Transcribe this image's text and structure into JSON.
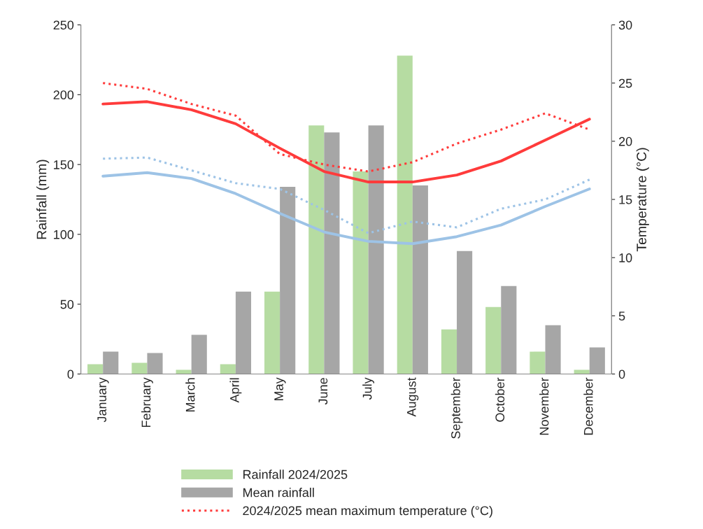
{
  "chart_data": {
    "type": "bar",
    "ylabel": "Rainfall (mm)",
    "y2label": "Temperature (°C)",
    "categories": [
      "January",
      "February",
      "March",
      "April",
      "May",
      "June",
      "July",
      "August",
      "September",
      "October",
      "November",
      "December"
    ],
    "ylim": [
      0,
      250
    ],
    "yticks": [
      0,
      50,
      100,
      150,
      200,
      250
    ],
    "y2lim": [
      0,
      30
    ],
    "y2ticks": [
      0,
      5,
      10,
      15,
      20,
      25,
      30
    ],
    "grid": false,
    "legend": "bottom",
    "series": [
      {
        "name": "Rainfall 2024/2025",
        "color": "#b6dca2",
        "values": [
          7,
          8,
          3,
          7,
          59,
          178,
          145,
          228,
          32,
          48,
          16,
          3
        ]
      },
      {
        "name": "Mean rainfall",
        "color": "#a6a6a6",
        "values": [
          16,
          15,
          28,
          59,
          134,
          173,
          178,
          135,
          88,
          63,
          35,
          19
        ]
      },
      {
        "name": "2024/2025 mean maximum temperature (°C)",
        "type": "line",
        "axis": "y2",
        "line_style": "dotted",
        "color": "#ff3b3b",
        "values": [
          25.0,
          24.5,
          23.2,
          22.2,
          18.9,
          18.0,
          17.4,
          18.2,
          19.8,
          21.0,
          22.4,
          21.0
        ]
      },
      {
        "type": "line",
        "axis": "y2",
        "line_style": "solid",
        "color": "#ff3b3b",
        "values": [
          23.2,
          23.4,
          22.7,
          21.5,
          19.4,
          17.4,
          16.5,
          16.5,
          17.1,
          18.3,
          20.1,
          21.9
        ]
      },
      {
        "type": "line",
        "axis": "y2",
        "line_style": "dotted",
        "color": "#9dc3e6",
        "values": [
          18.5,
          18.6,
          17.5,
          16.4,
          15.9,
          14.1,
          12.1,
          13.1,
          12.6,
          14.2,
          15.0,
          16.7
        ]
      },
      {
        "type": "line",
        "axis": "y2",
        "line_style": "solid",
        "color": "#9dc3e6",
        "values": [
          17.0,
          17.3,
          16.8,
          15.5,
          13.8,
          12.2,
          11.4,
          11.2,
          11.8,
          12.8,
          14.4,
          15.9
        ]
      }
    ]
  }
}
